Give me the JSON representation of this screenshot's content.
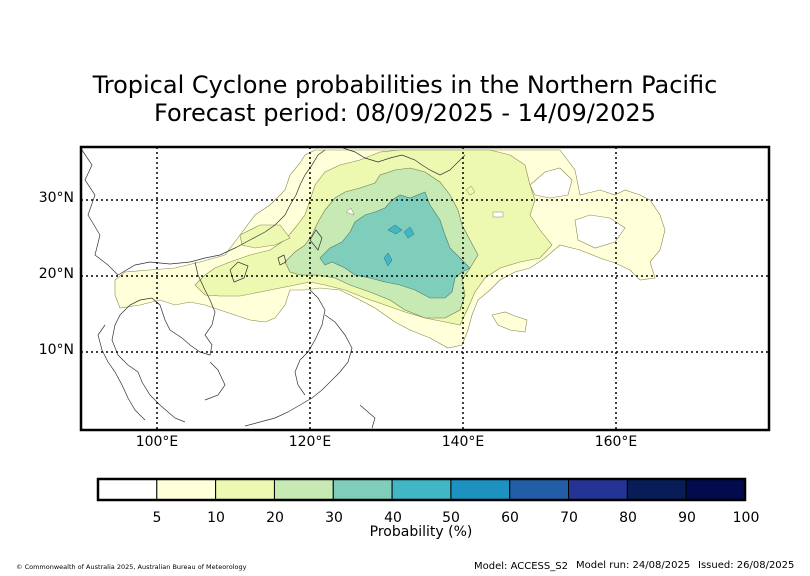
{
  "title": {
    "line1": "Tropical Cyclone probabilities in the Northern Pacific",
    "line2": "Forecast period: 08/09/2025 - 14/09/2025"
  },
  "axes": {
    "lat_labels": [
      "30°N",
      "20°N",
      "10°N"
    ],
    "lon_labels": [
      "100°E",
      "120°E",
      "140°E",
      "160°E"
    ],
    "lon_range": [
      90,
      180
    ],
    "lat_range": [
      0,
      37
    ]
  },
  "colorbar": {
    "label": "Probability (%)",
    "ticks": [
      "5",
      "10",
      "20",
      "30",
      "40",
      "50",
      "60",
      "70",
      "80",
      "90",
      "100"
    ],
    "colors": [
      "#ffffff",
      "#ffffd9",
      "#edf8b1",
      "#c7e9b4",
      "#7fcdbb",
      "#41b6c4",
      "#1d91c0",
      "#225ea8",
      "#253494",
      "#081d58",
      "#030a4d"
    ]
  },
  "footer": {
    "copyright": "© Commonwealth of Australia 2025, Australian Bureau of Meteorology",
    "model": "Model: ACCESS_S2",
    "model_run": "Model run: 24/08/2025",
    "issued": "Issued: 26/08/2025"
  }
}
